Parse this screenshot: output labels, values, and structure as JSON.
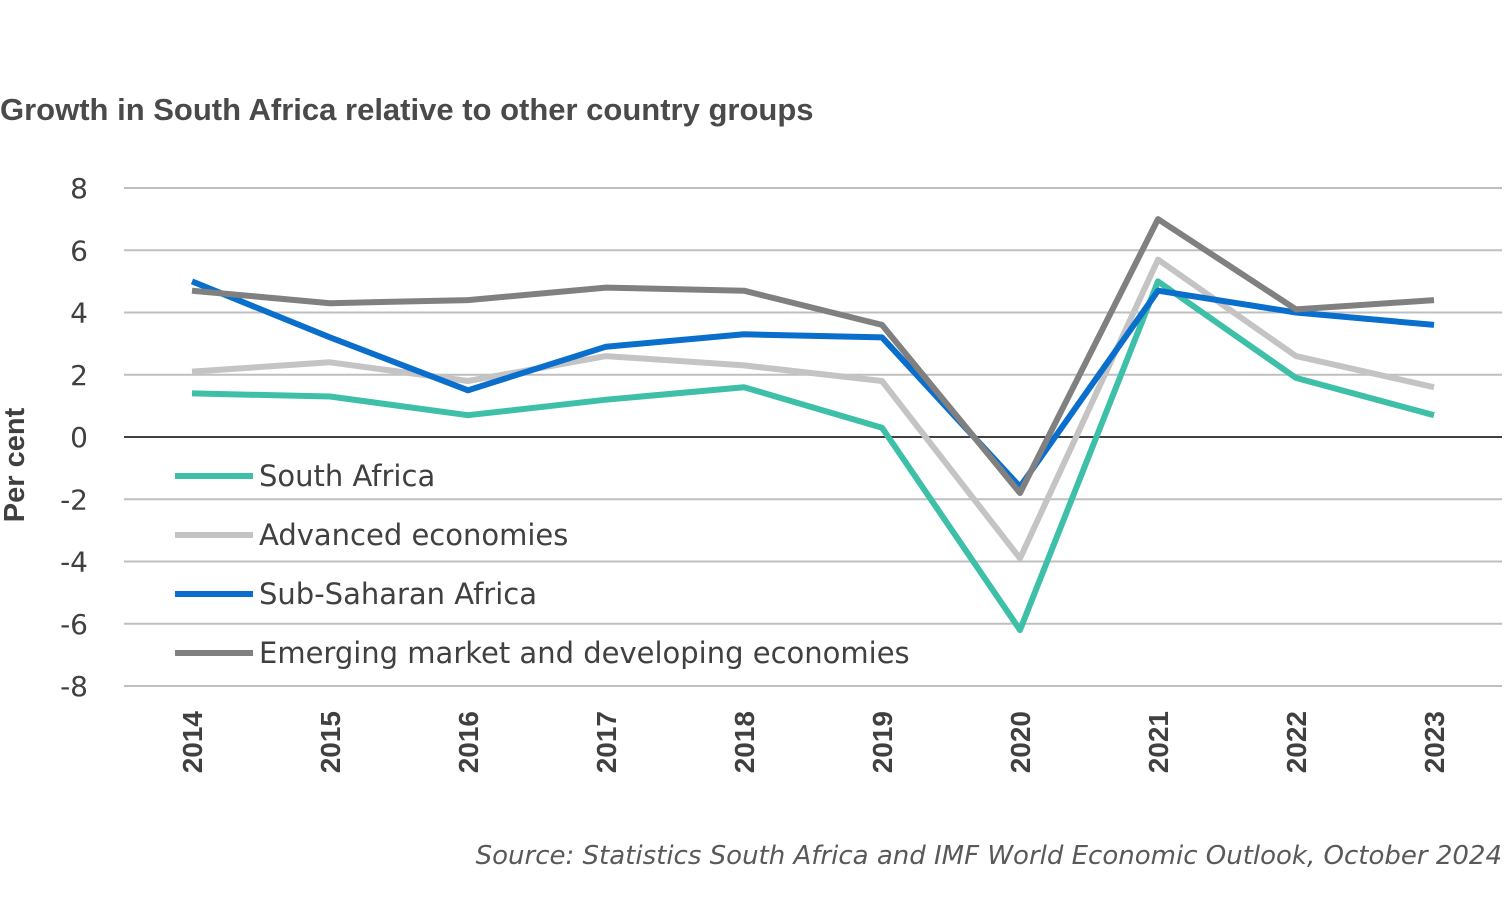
{
  "chart_data": {
    "type": "line",
    "title": "Growth in South Africa relative to other country groups",
    "ylabel": "Per cent",
    "xlabel": "",
    "x": [
      "2014",
      "2015",
      "2016",
      "2017",
      "2018",
      "2019",
      "2020",
      "2021",
      "2022",
      "2023"
    ],
    "ylim": [
      -8,
      8
    ],
    "yticks": [
      8,
      6,
      4,
      2,
      0,
      -2,
      -4,
      -6,
      -8
    ],
    "grid": true,
    "legend_position": "lower-left",
    "series": [
      {
        "name": "South Africa",
        "color": "#3dbfa8",
        "values": [
          1.4,
          1.3,
          0.7,
          1.2,
          1.6,
          0.3,
          -6.2,
          5.0,
          1.9,
          0.7
        ]
      },
      {
        "name": "Advanced economies",
        "color": "#c4c4c4",
        "values": [
          2.1,
          2.4,
          1.8,
          2.6,
          2.3,
          1.8,
          -3.9,
          5.7,
          2.6,
          1.6
        ]
      },
      {
        "name": "Sub-Saharan Africa",
        "color": "#0a6fcc",
        "values": [
          5.0,
          3.2,
          1.5,
          2.9,
          3.3,
          3.2,
          -1.6,
          4.7,
          4.0,
          3.6
        ]
      },
      {
        "name": "Emerging market and developing economies",
        "color": "#808080",
        "values": [
          4.7,
          4.3,
          4.4,
          4.8,
          4.7,
          3.6,
          -1.8,
          7.0,
          4.1,
          4.4
        ]
      }
    ],
    "source": "Source: Statistics South Africa and IMF World Economic Outlook, October 2024"
  }
}
